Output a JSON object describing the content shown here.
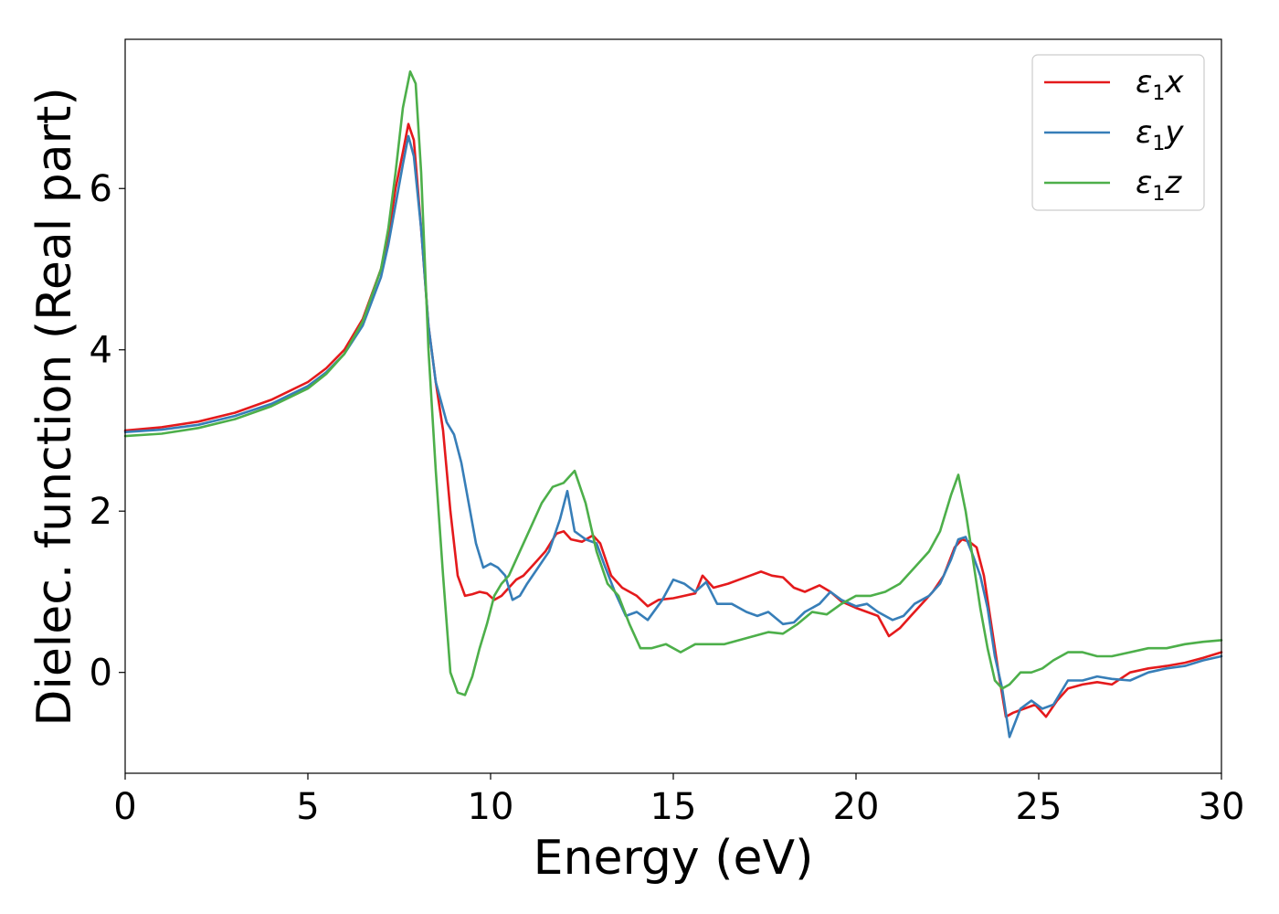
{
  "chart_data": {
    "type": "line",
    "title": "",
    "xlabel": "Energy (eV)",
    "ylabel": "Dielec. function (Real part)",
    "xlim": [
      0,
      30
    ],
    "ylim": [
      -1.25,
      7.85
    ],
    "xticks": [
      0,
      5,
      10,
      15,
      20,
      25,
      30
    ],
    "yticks": [
      0,
      2,
      4,
      6
    ],
    "grid": false,
    "legend_position": "top-right",
    "series": [
      {
        "name": "ε1x",
        "legend_base": "ε",
        "legend_sub": "1",
        "legend_tail": "x",
        "color": "#e41a1c",
        "x": [
          0,
          1,
          2,
          3,
          4,
          5,
          5.5,
          6,
          6.5,
          7,
          7.2,
          7.4,
          7.6,
          7.75,
          7.9,
          8.1,
          8.3,
          8.5,
          8.7,
          8.9,
          9.1,
          9.3,
          9.5,
          9.7,
          9.9,
          10.1,
          10.3,
          10.5,
          10.7,
          10.9,
          11.2,
          11.5,
          11.8,
          12.0,
          12.2,
          12.5,
          12.8,
          13.0,
          13.3,
          13.6,
          14.0,
          14.3,
          14.6,
          15.0,
          15.3,
          15.6,
          15.8,
          16.1,
          16.5,
          16.8,
          17.1,
          17.4,
          17.7,
          18.0,
          18.3,
          18.6,
          19.0,
          19.3,
          19.6,
          20.0,
          20.3,
          20.6,
          20.9,
          21.2,
          21.5,
          21.8,
          22.1,
          22.4,
          22.7,
          22.9,
          23.1,
          23.3,
          23.5,
          23.7,
          23.9,
          24.1,
          24.3,
          24.6,
          24.9,
          25.2,
          25.5,
          25.8,
          26.2,
          26.6,
          27.0,
          27.5,
          28.0,
          28.5,
          29.0,
          29.5,
          30.0
        ],
        "y": [
          3.0,
          3.04,
          3.11,
          3.22,
          3.38,
          3.6,
          3.77,
          4.0,
          4.38,
          5.0,
          5.4,
          6.0,
          6.45,
          6.8,
          6.6,
          5.5,
          4.3,
          3.6,
          3.0,
          2.0,
          1.2,
          0.95,
          0.97,
          1.0,
          0.98,
          0.9,
          0.95,
          1.05,
          1.15,
          1.2,
          1.35,
          1.5,
          1.72,
          1.75,
          1.65,
          1.62,
          1.7,
          1.6,
          1.2,
          1.05,
          0.95,
          0.82,
          0.9,
          0.92,
          0.95,
          0.98,
          1.2,
          1.05,
          1.1,
          1.15,
          1.2,
          1.25,
          1.2,
          1.18,
          1.05,
          1.0,
          1.08,
          1.0,
          0.88,
          0.8,
          0.75,
          0.7,
          0.45,
          0.55,
          0.7,
          0.85,
          1.0,
          1.2,
          1.55,
          1.65,
          1.62,
          1.55,
          1.2,
          0.6,
          0.0,
          -0.55,
          -0.5,
          -0.45,
          -0.4,
          -0.55,
          -0.35,
          -0.2,
          -0.15,
          -0.12,
          -0.15,
          0.0,
          0.05,
          0.08,
          0.12,
          0.18,
          0.25
        ]
      },
      {
        "name": "ε1y",
        "legend_base": "ε",
        "legend_sub": "1",
        "legend_tail": "y",
        "color": "#377eb8",
        "x": [
          0,
          1,
          2,
          3,
          4,
          5,
          5.5,
          6,
          6.5,
          7,
          7.2,
          7.4,
          7.6,
          7.75,
          7.9,
          8.1,
          8.3,
          8.5,
          8.8,
          9.0,
          9.2,
          9.4,
          9.6,
          9.8,
          10.0,
          10.2,
          10.4,
          10.6,
          10.8,
          11.0,
          11.3,
          11.6,
          11.9,
          12.1,
          12.3,
          12.6,
          12.9,
          13.1,
          13.4,
          13.7,
          14.0,
          14.3,
          14.7,
          15.0,
          15.3,
          15.6,
          15.9,
          16.2,
          16.6,
          17.0,
          17.3,
          17.6,
          18.0,
          18.3,
          18.6,
          19.0,
          19.3,
          19.6,
          20.0,
          20.3,
          20.6,
          21.0,
          21.3,
          21.6,
          22.0,
          22.3,
          22.6,
          22.8,
          23.0,
          23.2,
          23.4,
          23.6,
          23.8,
          24.0,
          24.2,
          24.5,
          24.8,
          25.1,
          25.4,
          25.8,
          26.2,
          26.6,
          27.0,
          27.5,
          28.0,
          28.5,
          29.0,
          29.5,
          30.0
        ],
        "y": [
          2.98,
          3.01,
          3.07,
          3.18,
          3.33,
          3.55,
          3.72,
          3.95,
          4.3,
          4.9,
          5.3,
          5.8,
          6.3,
          6.65,
          6.4,
          5.5,
          4.3,
          3.6,
          3.1,
          2.95,
          2.6,
          2.1,
          1.6,
          1.3,
          1.35,
          1.3,
          1.2,
          0.9,
          0.95,
          1.1,
          1.3,
          1.5,
          1.9,
          2.25,
          1.75,
          1.65,
          1.6,
          1.35,
          1.0,
          0.7,
          0.75,
          0.65,
          0.9,
          1.15,
          1.1,
          1.0,
          1.12,
          0.85,
          0.85,
          0.75,
          0.7,
          0.75,
          0.6,
          0.62,
          0.75,
          0.85,
          1.0,
          0.9,
          0.82,
          0.85,
          0.75,
          0.65,
          0.7,
          0.85,
          0.95,
          1.1,
          1.4,
          1.65,
          1.68,
          1.45,
          1.2,
          0.8,
          0.2,
          -0.2,
          -0.8,
          -0.45,
          -0.35,
          -0.45,
          -0.4,
          -0.1,
          -0.1,
          -0.05,
          -0.08,
          -0.1,
          0.0,
          0.05,
          0.08,
          0.15,
          0.2
        ]
      },
      {
        "name": "ε1z",
        "legend_base": "ε",
        "legend_sub": "1",
        "legend_tail": "z",
        "color": "#4daf4a",
        "x": [
          0,
          1,
          2,
          3,
          4,
          5,
          5.5,
          6,
          6.5,
          7,
          7.2,
          7.4,
          7.6,
          7.8,
          7.95,
          8.1,
          8.3,
          8.5,
          8.7,
          8.9,
          9.1,
          9.3,
          9.5,
          9.7,
          9.9,
          10.1,
          10.3,
          10.5,
          10.8,
          11.1,
          11.4,
          11.7,
          12.0,
          12.3,
          12.6,
          12.9,
          13.2,
          13.5,
          13.8,
          14.1,
          14.4,
          14.8,
          15.2,
          15.6,
          16.0,
          16.4,
          16.8,
          17.2,
          17.6,
          18.0,
          18.4,
          18.8,
          19.2,
          19.6,
          20.0,
          20.4,
          20.8,
          21.2,
          21.6,
          22.0,
          22.3,
          22.6,
          22.8,
          23.0,
          23.2,
          23.4,
          23.6,
          23.8,
          24.0,
          24.2,
          24.5,
          24.8,
          25.1,
          25.4,
          25.8,
          26.2,
          26.6,
          27.0,
          27.5,
          28.0,
          28.5,
          29.0,
          29.5,
          30.0
        ],
        "y": [
          2.93,
          2.96,
          3.03,
          3.14,
          3.3,
          3.52,
          3.7,
          3.95,
          4.35,
          5.0,
          5.5,
          6.2,
          7.0,
          7.45,
          7.3,
          6.2,
          4.0,
          2.5,
          1.2,
          0.0,
          -0.25,
          -0.28,
          -0.05,
          0.3,
          0.6,
          0.95,
          1.1,
          1.2,
          1.5,
          1.8,
          2.1,
          2.3,
          2.35,
          2.5,
          2.1,
          1.5,
          1.1,
          0.95,
          0.6,
          0.3,
          0.3,
          0.35,
          0.25,
          0.35,
          0.35,
          0.35,
          0.4,
          0.45,
          0.5,
          0.48,
          0.6,
          0.75,
          0.72,
          0.85,
          0.95,
          0.95,
          1.0,
          1.1,
          1.3,
          1.5,
          1.75,
          2.2,
          2.45,
          2.0,
          1.4,
          0.8,
          0.3,
          -0.1,
          -0.2,
          -0.15,
          0.0,
          0.0,
          0.05,
          0.15,
          0.25,
          0.25,
          0.2,
          0.2,
          0.25,
          0.3,
          0.3,
          0.35,
          0.38,
          0.4
        ]
      }
    ]
  }
}
